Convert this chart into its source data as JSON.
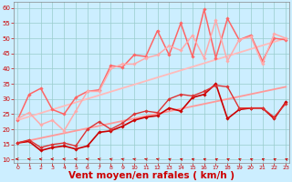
{
  "background_color": "#cceeff",
  "grid_color": "#99cccc",
  "xlabel": "Vent moyen/en rafales ( km/h )",
  "xlabel_color": "#cc0000",
  "xlabel_fontsize": 7.5,
  "tick_color": "#cc0000",
  "yticks": [
    10,
    15,
    20,
    25,
    30,
    35,
    40,
    45,
    50,
    55,
    60
  ],
  "xticks": [
    0,
    1,
    2,
    3,
    4,
    5,
    6,
    7,
    8,
    9,
    10,
    11,
    12,
    13,
    14,
    15,
    16,
    17,
    18,
    19,
    20,
    21,
    22,
    23
  ],
  "xlim": [
    -0.3,
    23.3
  ],
  "ylim": [
    9,
    62
  ],
  "lines": [
    {
      "x": [
        0,
        1,
        2,
        3,
        4,
        5,
        6,
        7,
        8,
        9,
        10,
        11,
        12,
        13,
        14,
        15,
        16,
        17,
        18,
        19,
        20,
        21,
        22,
        23
      ],
      "y": [
        15.5,
        16.0,
        13.0,
        14.0,
        14.5,
        13.5,
        14.5,
        19.0,
        19.5,
        21.0,
        23.0,
        24.0,
        24.5,
        27.0,
        26.0,
        30.5,
        31.5,
        35.0,
        23.5,
        26.5,
        27.0,
        27.0,
        23.5,
        29.0
      ],
      "color": "#cc0000",
      "lw": 1.2,
      "marker": "D",
      "ms": 1.8
    },
    {
      "x": [
        0,
        1,
        2,
        3,
        4,
        5,
        6,
        7,
        8,
        9,
        10,
        11,
        12,
        13,
        14,
        15,
        16,
        17,
        18,
        19,
        20,
        21,
        22,
        23
      ],
      "y": [
        15.5,
        16.5,
        14.0,
        15.0,
        15.5,
        14.5,
        20.0,
        22.5,
        20.0,
        22.0,
        25.0,
        26.0,
        25.5,
        30.0,
        31.5,
        31.0,
        32.5,
        34.5,
        34.0,
        27.0,
        27.0,
        27.0,
        24.0,
        28.5
      ],
      "color": "#dd3333",
      "lw": 1.0,
      "marker": "D",
      "ms": 1.8
    },
    {
      "x": [
        0,
        1,
        2,
        3,
        4,
        5,
        6,
        7,
        8,
        9,
        10,
        11,
        12,
        13,
        14,
        15,
        16,
        17,
        18,
        19,
        20,
        21,
        22,
        23
      ],
      "y": [
        23.0,
        31.5,
        33.5,
        26.5,
        25.0,
        30.5,
        32.5,
        33.0,
        41.0,
        40.5,
        44.5,
        44.0,
        52.5,
        44.5,
        55.0,
        44.0,
        59.5,
        43.5,
        56.5,
        49.5,
        51.0,
        42.5,
        50.0,
        49.5
      ],
      "color": "#ff6666",
      "lw": 1.1,
      "marker": "D",
      "ms": 1.8
    },
    {
      "x": [
        0,
        1,
        2,
        3,
        4,
        5,
        6,
        7,
        8,
        9,
        10,
        11,
        12,
        13,
        14,
        15,
        16,
        17,
        18,
        19,
        20,
        21,
        22,
        23
      ],
      "y": [
        23.5,
        25.5,
        21.5,
        23.0,
        19.5,
        26.0,
        32.5,
        32.5,
        40.0,
        41.5,
        41.5,
        43.5,
        44.5,
        47.5,
        46.0,
        51.0,
        43.5,
        56.0,
        42.5,
        49.5,
        50.5,
        41.5,
        51.5,
        50.0
      ],
      "color": "#ffaaaa",
      "lw": 1.1,
      "marker": "D",
      "ms": 1.8
    },
    {
      "x": [
        0,
        23
      ],
      "y": [
        15.5,
        34.0
      ],
      "color": "#ff9999",
      "lw": 1.3,
      "marker": null,
      "ms": 0
    },
    {
      "x": [
        0,
        23
      ],
      "y": [
        23.0,
        50.0
      ],
      "color": "#ffbbbb",
      "lw": 1.3,
      "marker": null,
      "ms": 0
    }
  ],
  "wind_arrows": {
    "x": [
      0,
      1,
      2,
      3,
      4,
      5,
      6,
      7,
      8,
      9,
      10,
      11,
      12,
      13,
      14,
      15,
      16,
      17,
      18,
      19,
      20,
      21,
      22,
      23
    ],
    "angles_deg": [
      270,
      300,
      290,
      270,
      300,
      300,
      305,
      305,
      310,
      315,
      315,
      315,
      315,
      320,
      320,
      320,
      320,
      325,
      325,
      325,
      325,
      325,
      325,
      325
    ]
  }
}
